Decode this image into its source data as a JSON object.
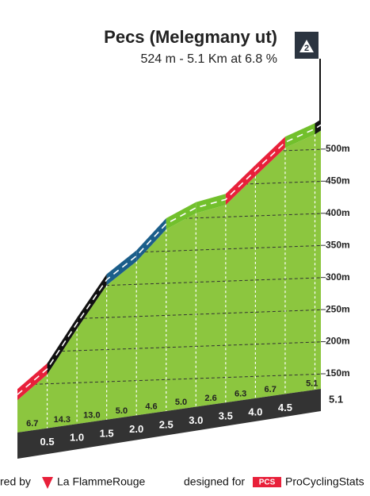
{
  "chart_data": {
    "type": "area",
    "title": "Pecs (Melegmany ut)",
    "subtitle": "524 m - 5.1 Km at 6.8 %",
    "category": "2",
    "x": [
      0,
      0.5,
      1,
      1.5,
      2,
      2.5,
      3,
      3.5,
      4,
      4.5,
      5,
      5.1
    ],
    "values": [
      104,
      144,
      215,
      283,
      320,
      370,
      395,
      408,
      453,
      497,
      518,
      524
    ],
    "segment_colors": [
      "#e8203a",
      "#111111",
      "#111111",
      "#1b5e8a",
      "#1b5e8a",
      "#72c02c",
      "#72c02c",
      "#e8203a",
      "#e8203a",
      "#72c02c",
      "#111111"
    ],
    "gradients": [
      6.7,
      14.3,
      13,
      5,
      4.6,
      5,
      2.6,
      6.3,
      6.7,
      5.1
    ],
    "gradient_labels": [
      "6.7",
      "14.3",
      "13.0",
      "5.0",
      "4.6",
      "5.0",
      "2.6",
      "6.3",
      "6.7",
      "5.1"
    ],
    "color": "#8cc63f",
    "xlim": [
      0,
      5.1
    ],
    "ylim": [
      60,
      540
    ],
    "xticks": [
      0.5,
      {
        "value": 1,
        "label": "1.0"
      },
      1.5,
      {
        "value": 2,
        "label": "2.0"
      },
      2.5,
      {
        "value": 3,
        "label": "3.0"
      },
      3.5,
      {
        "value": 4,
        "label": "4.0"
      },
      4.5,
      5.1
    ],
    "yticks": [
      {
        "value": 150,
        "label": "150m"
      },
      {
        "value": 200,
        "label": "200m"
      },
      {
        "value": 250,
        "label": "250m"
      },
      {
        "value": 300,
        "label": "300m"
      },
      {
        "value": 350,
        "label": "350m"
      },
      {
        "value": 400,
        "label": "400m"
      },
      {
        "value": 450,
        "label": "450m"
      },
      {
        "value": 500,
        "label": "500m"
      }
    ],
    "grid": true
  },
  "footer": {
    "powered": "red by",
    "brand": "La FlammeRouge",
    "designed": "designed for",
    "pcs": "PCS",
    "site": "ProCyclingStats"
  }
}
